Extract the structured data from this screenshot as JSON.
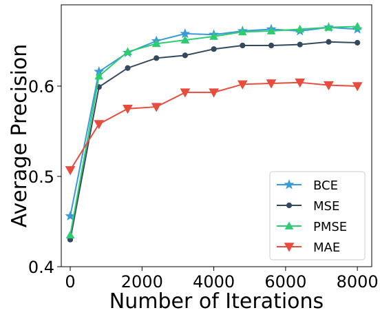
{
  "chart_data": {
    "type": "line",
    "title": "",
    "xlabel": "Number of Iterations",
    "ylabel": "Average Precision",
    "xlim": [
      -250,
      8400
    ],
    "ylim": [
      0.4,
      0.69
    ],
    "xticks": [
      0,
      2000,
      4000,
      6000,
      8000
    ],
    "xtick_labels": [
      "0",
      "2000",
      "4000",
      "6000",
      "8000"
    ],
    "yticks": [
      0.4,
      0.5,
      0.6
    ],
    "ytick_labels": [
      "0.4",
      "0.5",
      "0.6"
    ],
    "grid": false,
    "legend_position": "lower-right",
    "x": [
      0,
      800,
      1600,
      2400,
      3200,
      4000,
      4800,
      5600,
      6400,
      7200,
      8000
    ],
    "series": [
      {
        "name": "BCE",
        "color": "#3a9ad9",
        "marker": "star",
        "values": [
          0.456,
          0.616,
          0.637,
          0.65,
          0.658,
          0.657,
          0.661,
          0.663,
          0.661,
          0.665,
          0.663
        ]
      },
      {
        "name": "MSE",
        "color": "#34495e",
        "marker": "circle",
        "values": [
          0.43,
          0.599,
          0.62,
          0.631,
          0.634,
          0.641,
          0.645,
          0.645,
          0.646,
          0.649,
          0.648
        ]
      },
      {
        "name": "PMSE",
        "color": "#2ecc71",
        "marker": "triangle-up",
        "values": [
          0.435,
          0.611,
          0.638,
          0.647,
          0.651,
          0.655,
          0.66,
          0.661,
          0.663,
          0.665,
          0.666
        ]
      },
      {
        "name": "MAE",
        "color": "#e74c3c",
        "marker": "triangle-down",
        "values": [
          0.507,
          0.558,
          0.575,
          0.577,
          0.593,
          0.593,
          0.602,
          0.603,
          0.604,
          0.601,
          0.6
        ]
      }
    ]
  }
}
